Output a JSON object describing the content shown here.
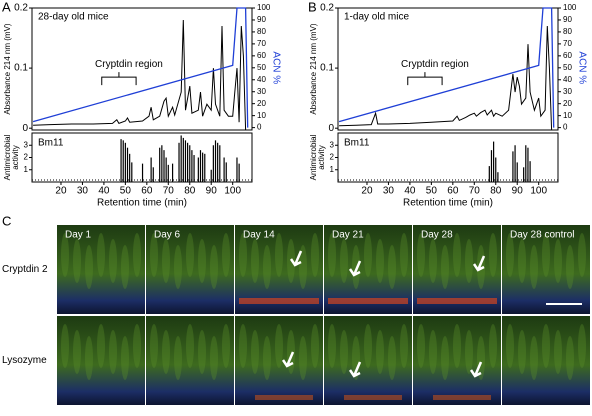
{
  "chart_data": [
    {
      "type": "line",
      "panel": "A",
      "title": "28-day old mice",
      "annotation": "Cryptdin region",
      "xlabel": "Retention time (min)",
      "ylabel": "Absorbance 214 nm (mV)",
      "y2label": "ACN %",
      "xlim": [
        6.5,
        109
      ],
      "xticks": [
        20,
        30,
        40,
        50,
        60,
        70,
        80,
        90,
        100
      ],
      "ylim": [
        -0.003,
        0.2
      ],
      "yticks": [
        0,
        0.1,
        0.2
      ],
      "y2lim": [
        -2,
        100
      ],
      "y2ticks": [
        0,
        10,
        20,
        30,
        40,
        50,
        60,
        70,
        80,
        90,
        100
      ],
      "series": [
        {
          "color": "#000000",
          "x": [
            7,
            15,
            25,
            35,
            44,
            46,
            47,
            50,
            51,
            52,
            58,
            61,
            62,
            63,
            66,
            68,
            69,
            70,
            72,
            73,
            76,
            77,
            78,
            80,
            81,
            84,
            85,
            86,
            88,
            90,
            91,
            92,
            94,
            95,
            96,
            98,
            100,
            101,
            102,
            103,
            104,
            105,
            106
          ],
          "values": [
            0.005,
            0.006,
            0.007,
            0.007,
            0.008,
            0.014,
            0.008,
            0.012,
            0.017,
            0.01,
            0.012,
            0.02,
            0.035,
            0.014,
            0.02,
            0.045,
            0.05,
            0.02,
            0.035,
            0.022,
            0.06,
            0.18,
            0.03,
            0.07,
            0.025,
            0.03,
            0.06,
            0.02,
            0.04,
            0.03,
            0.1,
            0.04,
            0.02,
            0.17,
            0.03,
            0.02,
            0.02,
            0.06,
            0.1,
            0.01,
            0.17,
            0.12,
            -0.003
          ]
        },
        {
          "color": "#1f3fd6",
          "axis": "y2",
          "x": [
            7,
            100,
            102,
            106,
            107
          ],
          "values": [
            5,
            52,
            100,
            100,
            0
          ]
        }
      ],
      "activity": {
        "label": "Bm11",
        "ylabel": [
          "Antimicrobial",
          "activity"
        ],
        "color": "#000000",
        "ylim": [
          0,
          4
        ],
        "yticks": [
          1,
          2,
          3
        ],
        "x": [
          48,
          49,
          50,
          51,
          52,
          53,
          58,
          62,
          63,
          66,
          67,
          68,
          69,
          70,
          72,
          75,
          76,
          77,
          78,
          79,
          80,
          81,
          82,
          84,
          85,
          86,
          87,
          90,
          91,
          92,
          93,
          94,
          96,
          97,
          102,
          103
        ],
        "values": [
          3.5,
          3.4,
          3.2,
          2.8,
          2.3,
          1.6,
          1.5,
          2.0,
          1.2,
          2.8,
          3.0,
          2.6,
          2.0,
          1.4,
          1.5,
          3.2,
          3.8,
          3.6,
          3.4,
          3.2,
          3.0,
          2.6,
          2.2,
          2.0,
          2.6,
          2.4,
          2.3,
          1.0,
          3.0,
          3.4,
          3.2,
          3.0,
          2.0,
          1.6,
          2.0,
          1.5
        ]
      }
    },
    {
      "type": "line",
      "panel": "B",
      "title": "1-day old mice",
      "annotation": "Cryptdin region",
      "xlabel": "Retention time (min)",
      "ylabel": "Absorbance 214 nm (mV)",
      "y2label": "ACN %",
      "xlim": [
        6.5,
        109
      ],
      "xticks": [
        20,
        30,
        40,
        50,
        60,
        70,
        80,
        90,
        100
      ],
      "ylim": [
        -0.003,
        0.2
      ],
      "yticks": [
        0,
        0.1,
        0.2
      ],
      "y2lim": [
        -2,
        100
      ],
      "y2ticks": [
        0,
        10,
        20,
        30,
        40,
        50,
        60,
        70,
        80,
        90,
        100
      ],
      "series": [
        {
          "color": "#000000",
          "x": [
            7,
            15,
            22,
            24,
            25,
            30,
            40,
            50,
            55,
            60,
            62,
            63,
            66,
            68,
            70,
            71,
            73,
            75,
            76,
            78,
            79,
            80,
            83,
            86,
            88,
            89,
            90,
            91,
            92,
            94,
            95,
            96,
            98,
            100,
            101,
            103,
            104,
            105,
            106
          ],
          "values": [
            0.004,
            0.005,
            0.006,
            0.025,
            0.007,
            0.007,
            0.008,
            0.01,
            0.011,
            0.012,
            0.02,
            0.013,
            0.018,
            0.022,
            0.025,
            0.02,
            0.026,
            0.03,
            0.022,
            0.03,
            0.02,
            0.025,
            0.02,
            0.03,
            0.09,
            0.06,
            0.085,
            0.07,
            0.04,
            0.05,
            0.14,
            0.06,
            0.03,
            0.05,
            0.02,
            0.03,
            0.17,
            0.1,
            -0.003
          ]
        },
        {
          "color": "#1f3fd6",
          "axis": "y2",
          "x": [
            7,
            100,
            102,
            106,
            107
          ],
          "values": [
            5,
            52,
            100,
            100,
            0
          ]
        }
      ],
      "activity": {
        "label": "Bm11",
        "ylabel": [
          "Antimicrobial",
          "activity"
        ],
        "color": "#000000",
        "ylim": [
          0,
          4
        ],
        "yticks": [
          1,
          2,
          3
        ],
        "x": [
          77,
          78,
          79,
          80,
          81,
          88,
          89,
          90,
          93,
          94,
          95,
          96
        ],
        "values": [
          1.3,
          2.6,
          3.3,
          2.0,
          0.8,
          2.5,
          3.0,
          1.6,
          1.2,
          3.0,
          2.8,
          1.7
        ]
      }
    }
  ],
  "panel_c": {
    "label": "C",
    "columns": [
      "Day 1",
      "Day 6",
      "Day 14",
      "Day 21",
      "Day 28",
      "Day 28 control"
    ],
    "rows": [
      "Cryptdin 2",
      "Lysozyme"
    ]
  }
}
